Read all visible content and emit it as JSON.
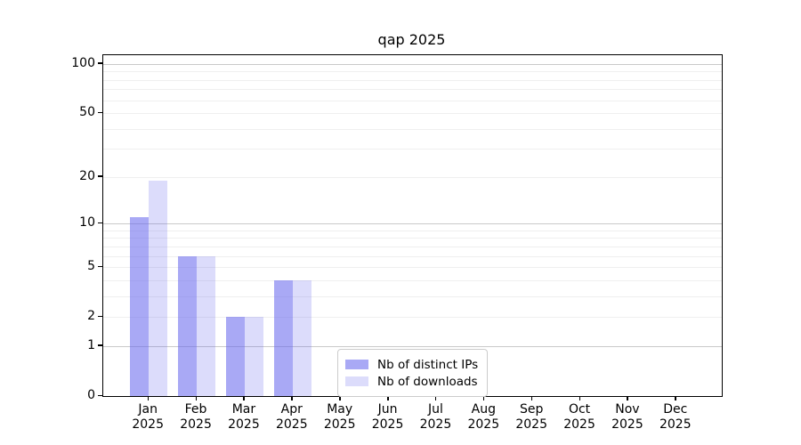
{
  "chart_data": {
    "type": "bar",
    "title": "qap 2025",
    "x_categories": [
      "Jan",
      "Feb",
      "Mar",
      "Apr",
      "May",
      "Jun",
      "Jul",
      "Aug",
      "Sep",
      "Oct",
      "Nov",
      "Dec"
    ],
    "x_year": "2025",
    "yscale": "log1p",
    "ylim": [
      0,
      113.3
    ],
    "ytick_labels": [
      100,
      50,
      20,
      10,
      5,
      2,
      1,
      0
    ],
    "grid_major": [
      1,
      10,
      100
    ],
    "grid_minor": [
      2,
      3,
      4,
      5,
      6,
      7,
      8,
      9,
      20,
      30,
      40,
      50,
      60,
      70,
      80,
      90
    ],
    "legend_position": "lower center",
    "grid": true,
    "series": [
      {
        "name": "Nb of distinct IPs",
        "color": "rgba(102,102,238,0.56)",
        "values": [
          11,
          6,
          2,
          4,
          0,
          0,
          0,
          0,
          0,
          0,
          0,
          0
        ]
      },
      {
        "name": "Nb of downloads",
        "color": "rgba(102,102,238,0.23)",
        "values": [
          19,
          6,
          2,
          4,
          0,
          0,
          0,
          0,
          0,
          0,
          0,
          0
        ]
      }
    ]
  },
  "colors": {
    "grid_minor": "#efefef",
    "grid_major": "#c9c9c9",
    "spine": "#000000",
    "legend_border": "#cccccc"
  }
}
